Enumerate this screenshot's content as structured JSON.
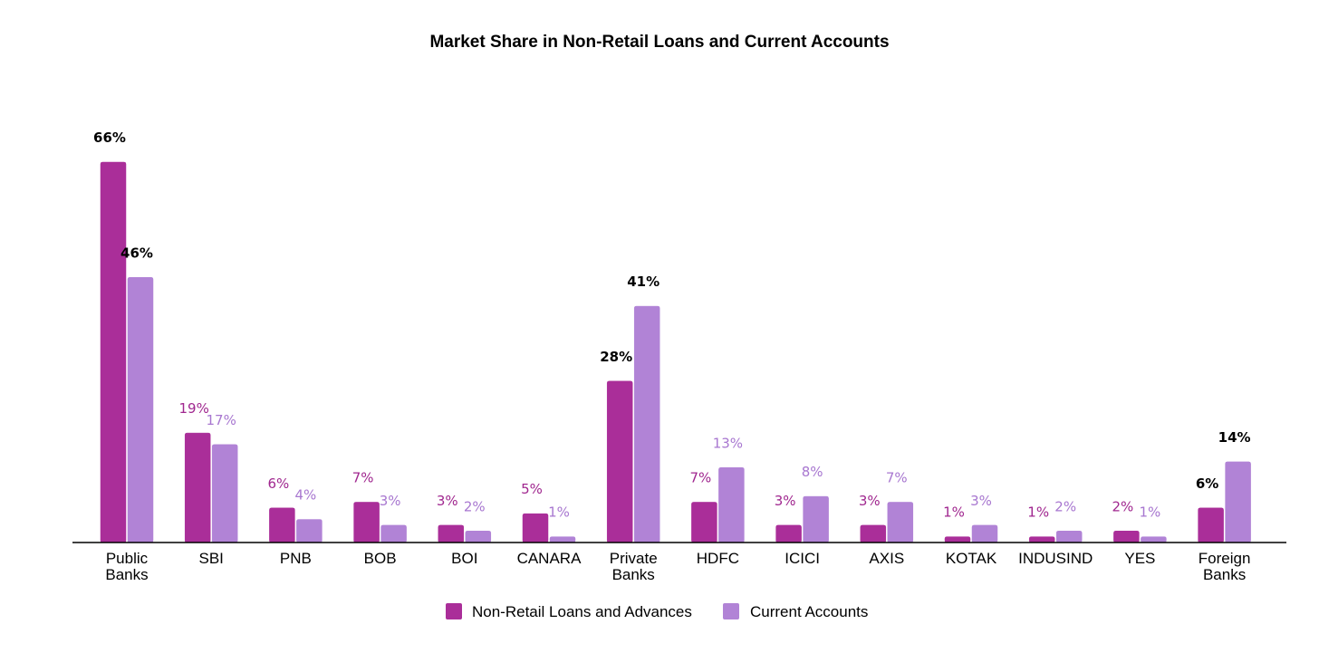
{
  "chart_data": {
    "type": "bar",
    "title": "Market Share in Non-Retail Loans and Current Accounts",
    "xlabel": "",
    "ylabel": "",
    "ylim": [
      0,
      70
    ],
    "grid": false,
    "legend_position": "bottom",
    "categories": [
      [
        "Public",
        "Banks"
      ],
      [
        "SBI"
      ],
      [
        "PNB"
      ],
      [
        "BOB"
      ],
      [
        "BOI"
      ],
      [
        "CANARA"
      ],
      [
        "Private",
        "Banks"
      ],
      [
        "HDFC"
      ],
      [
        "ICICI"
      ],
      [
        "AXIS"
      ],
      [
        "KOTAK"
      ],
      [
        "INDUSIND"
      ],
      [
        "YES"
      ],
      [
        "Foreign",
        "Banks"
      ]
    ],
    "bold_categories": [
      0,
      6,
      13
    ],
    "series": [
      {
        "name": "Non-Retail Loans and Advances",
        "color": "#aa2e99",
        "label_color": "#a0278f",
        "values": [
          66,
          19,
          6,
          7,
          3,
          5,
          28,
          7,
          3,
          3,
          1,
          1,
          2,
          6
        ],
        "labels": [
          "66%",
          "19%",
          "6%",
          "7%",
          "3%",
          "5%",
          "28%",
          "7%",
          "3%",
          "3%",
          "1%",
          "1%",
          "2%",
          "6%"
        ]
      },
      {
        "name": "Current Accounts",
        "color": "#b183d6",
        "label_color": "#a877d0",
        "values": [
          46,
          17,
          4,
          3,
          2,
          1,
          41,
          13,
          8,
          7,
          3,
          2,
          1,
          14
        ],
        "labels": [
          "46%",
          "17%",
          "4%",
          "3%",
          "2%",
          "1%",
          "41%",
          "13%",
          "8%",
          "7%",
          "3%",
          "2%",
          "1%",
          "14%"
        ]
      }
    ]
  }
}
